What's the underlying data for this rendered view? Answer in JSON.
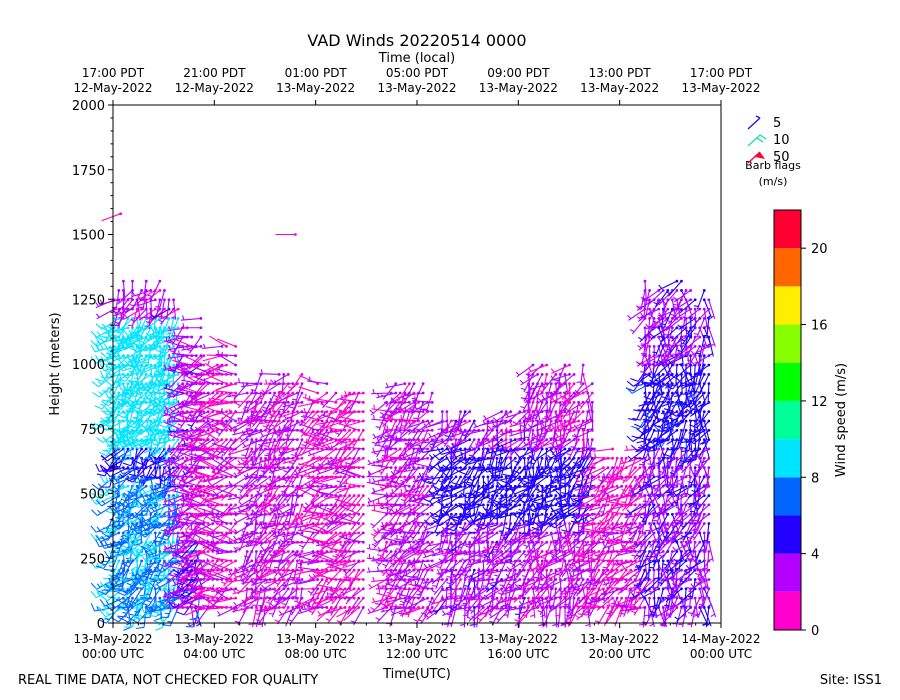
{
  "chart_data": {
    "type": "wind-barb",
    "title": "VAD Winds 20220514 0000",
    "top_axis_label": "Time (local)",
    "xlabel": "Time(UTC)",
    "ylabel": "Height (meters)",
    "x_unit": "hours since 13-May-2022 00:00 UTC",
    "xlim": [
      0,
      24
    ],
    "ylim": [
      0,
      2000
    ],
    "y_ticks": [
      0,
      250,
      500,
      750,
      1000,
      1250,
      1500,
      1750,
      2000
    ],
    "x_ticks": [
      {
        "hour": 0,
        "line1": "13-May-2022",
        "line2": "00:00 UTC"
      },
      {
        "hour": 4,
        "line1": "13-May-2022",
        "line2": "04:00 UTC"
      },
      {
        "hour": 8,
        "line1": "13-May-2022",
        "line2": "08:00 UTC"
      },
      {
        "hour": 12,
        "line1": "13-May-2022",
        "line2": "12:00 UTC"
      },
      {
        "hour": 16,
        "line1": "13-May-2022",
        "line2": "16:00 UTC"
      },
      {
        "hour": 20,
        "line1": "13-May-2022",
        "line2": "20:00 UTC"
      },
      {
        "hour": 24,
        "line1": "14-May-2022",
        "line2": "00:00 UTC"
      }
    ],
    "top_ticks": [
      {
        "hour": 0,
        "line1": "17:00 PDT",
        "line2": "12-May-2022"
      },
      {
        "hour": 4,
        "line1": "21:00 PDT",
        "line2": "12-May-2022"
      },
      {
        "hour": 8,
        "line1": "01:00 PDT",
        "line2": "13-May-2022"
      },
      {
        "hour": 12,
        "line1": "05:00 PDT",
        "line2": "13-May-2022"
      },
      {
        "hour": 16,
        "line1": "09:00 PDT",
        "line2": "13-May-2022"
      },
      {
        "hour": 20,
        "line1": "13:00 PDT",
        "line2": "13-May-2022"
      },
      {
        "hour": 24,
        "line1": "17:00 PDT",
        "line2": "13-May-2022"
      }
    ],
    "barb_legend": {
      "title_line1": "Barb flags",
      "title_line2": "(m/s)",
      "entries": [
        {
          "label": "5",
          "color": "#1a1ae6"
        },
        {
          "label": "10",
          "color": "#22e6a0"
        },
        {
          "label": "50",
          "color": "#ff0033"
        }
      ]
    },
    "colorbar": {
      "label": "Wind speed (m/s)",
      "min": 0,
      "max": 22,
      "ticks": [
        0,
        4,
        8,
        12,
        16,
        20
      ],
      "bins": [
        {
          "from": 0,
          "to": 2,
          "color": "#ff00cc"
        },
        {
          "from": 2,
          "to": 4,
          "color": "#b300ff"
        },
        {
          "from": 4,
          "to": 6,
          "color": "#2200ff"
        },
        {
          "from": 6,
          "to": 8,
          "color": "#0066ff"
        },
        {
          "from": 8,
          "to": 10,
          "color": "#00e5ff"
        },
        {
          "from": 10,
          "to": 12,
          "color": "#00ff99"
        },
        {
          "from": 12,
          "to": 14,
          "color": "#00ff00"
        },
        {
          "from": 14,
          "to": 16,
          "color": "#88ff00"
        },
        {
          "from": 16,
          "to": 18,
          "color": "#ffee00"
        },
        {
          "from": 18,
          "to": 20,
          "color": "#ff6600"
        },
        {
          "from": 20,
          "to": 22,
          "color": "#ff0033"
        }
      ]
    },
    "profile_groups": [
      {
        "start": 0.05,
        "end": 2.7,
        "step": 0.18,
        "top": 1350,
        "speed": 6.0,
        "dir": 215
      },
      {
        "start": 2.75,
        "end": 3.6,
        "step": 0.18,
        "top": 1200,
        "speed": 3.0,
        "dir": 250
      },
      {
        "start": 3.1,
        "end": 3.4,
        "step": 0.15,
        "top": 400,
        "speed": 5.0,
        "dir": 200
      },
      {
        "start": 3.4,
        "end": 4.9,
        "step": 0.18,
        "top": 1100,
        "speed": 1.5,
        "dir": 260
      },
      {
        "start": 5.3,
        "end": 7.6,
        "step": 0.18,
        "top": 1000,
        "speed": 2.5,
        "dir": 230
      },
      {
        "start": 7.9,
        "end": 9.9,
        "step": 0.18,
        "top": 960,
        "speed": 1.5,
        "dir": 250
      },
      {
        "start": 10.8,
        "end": 12.6,
        "step": 0.18,
        "top": 960,
        "speed": 2.5,
        "dir": 240
      },
      {
        "start": 13.0,
        "end": 16.4,
        "step": 0.18,
        "top": 850,
        "speed": 3.0,
        "dir": 220
      },
      {
        "start": 16.4,
        "end": 19.0,
        "step": 0.18,
        "top": 1020,
        "speed": 2.5,
        "dir": 210
      },
      {
        "start": 19.0,
        "end": 21.0,
        "step": 0.18,
        "top": 700,
        "speed": 1.5,
        "dir": 240
      },
      {
        "start": 21.0,
        "end": 23.6,
        "step": 0.18,
        "top": 1350,
        "speed": 3.5,
        "dir": 200
      }
    ],
    "barbs": []
  },
  "footer": {
    "left": "REAL TIME DATA, NOT CHECKED FOR QUALITY",
    "right": "Site: ISS1"
  }
}
